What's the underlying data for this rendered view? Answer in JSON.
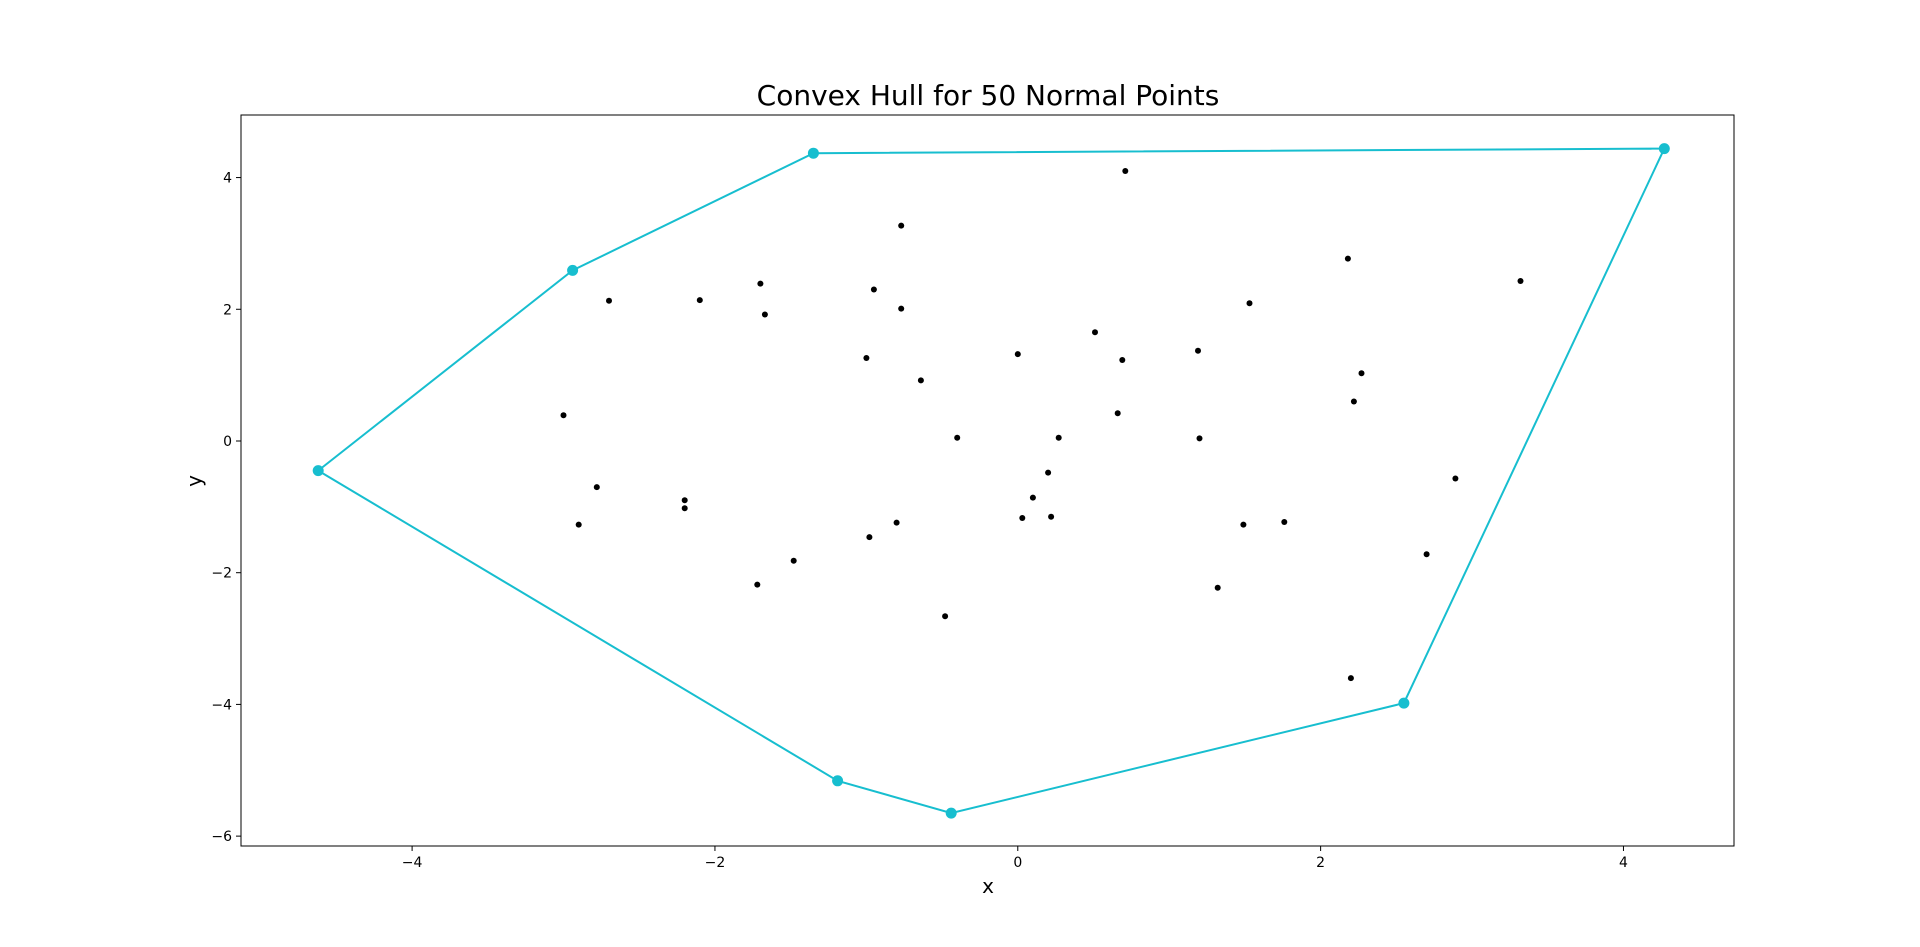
{
  "chart_data": {
    "type": "scatter",
    "title": "Convex Hull for 50 Normal Points",
    "xlabel": "x",
    "ylabel": "y",
    "xlim": [
      -5.13,
      4.73
    ],
    "ylim": [
      -6.15,
      4.95
    ],
    "grid": false,
    "x_ticks": [
      -4,
      -2,
      0,
      2,
      4
    ],
    "y_ticks": [
      -6,
      -4,
      -2,
      0,
      2,
      4
    ],
    "x_tick_labels": [
      "−4",
      "−2",
      "0",
      "2",
      "4"
    ],
    "y_tick_labels": [
      "−6",
      "−4",
      "−2",
      "0",
      "2",
      "4"
    ],
    "point_color": "#000000",
    "hull_color": "#17becf",
    "points": [
      [
        -3.0,
        0.39
      ],
      [
        -2.7,
        2.13
      ],
      [
        -2.78,
        -0.7
      ],
      [
        -2.9,
        -1.27
      ],
      [
        -2.2,
        -0.9
      ],
      [
        -2.2,
        -1.02
      ],
      [
        -2.1,
        2.14
      ],
      [
        -1.7,
        2.39
      ],
      [
        -1.67,
        1.92
      ],
      [
        -1.72,
        -2.18
      ],
      [
        -1.48,
        -1.82
      ],
      [
        -1.0,
        1.26
      ],
      [
        -0.95,
        2.3
      ],
      [
        -0.98,
        -1.46
      ],
      [
        -0.8,
        -1.24
      ],
      [
        -0.77,
        3.27
      ],
      [
        -0.77,
        2.01
      ],
      [
        -0.64,
        0.92
      ],
      [
        -0.4,
        0.05
      ],
      [
        -0.48,
        -2.66
      ],
      [
        0.0,
        1.32
      ],
      [
        0.03,
        -1.17
      ],
      [
        0.1,
        -0.86
      ],
      [
        0.2,
        -0.48
      ],
      [
        0.22,
        -1.15
      ],
      [
        0.27,
        0.05
      ],
      [
        0.51,
        1.65
      ],
      [
        0.66,
        0.42
      ],
      [
        0.69,
        1.23
      ],
      [
        0.71,
        4.1
      ],
      [
        1.19,
        1.37
      ],
      [
        1.2,
        0.04
      ],
      [
        1.32,
        -2.23
      ],
      [
        1.49,
        -1.27
      ],
      [
        1.53,
        2.09
      ],
      [
        1.76,
        -1.23
      ],
      [
        2.18,
        2.77
      ],
      [
        2.22,
        0.6
      ],
      [
        2.27,
        1.03
      ],
      [
        2.2,
        -3.6
      ],
      [
        2.7,
        -1.72
      ],
      [
        2.89,
        -0.57
      ],
      [
        3.32,
        2.43
      ]
    ],
    "hull": [
      [
        -4.62,
        -0.45
      ],
      [
        -2.94,
        2.59
      ],
      [
        -1.35,
        4.37
      ],
      [
        4.27,
        4.44
      ],
      [
        2.55,
        -3.98
      ],
      [
        -0.44,
        -5.65
      ],
      [
        -1.19,
        -5.16
      ],
      [
        -4.62,
        -0.45
      ]
    ]
  }
}
